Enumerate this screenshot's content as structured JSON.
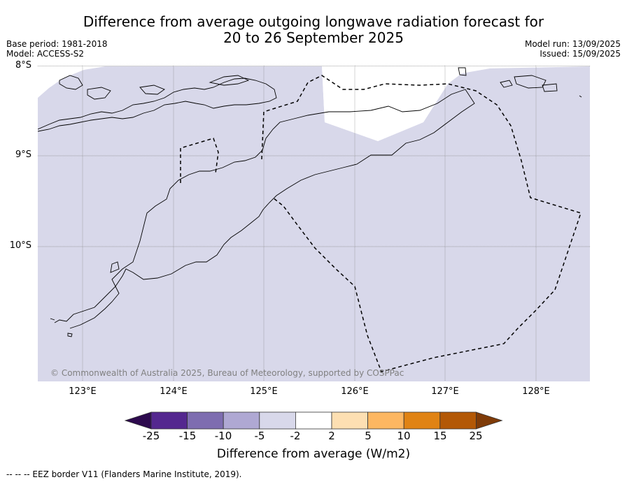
{
  "title_line1": "Difference from average outgoing longwave radiation forecast for",
  "title_line2": "20 to 26 September 2025",
  "base_period": "Base period: 1981-2018",
  "model": "Model: ACCESS-S2",
  "model_run": "Model run: 13/09/2025",
  "issued": "Issued: 15/09/2025",
  "lat_labels": [
    "8°S",
    "9°S",
    "10°S"
  ],
  "lon_labels": [
    "123°E",
    "124°E",
    "125°E",
    "126°E",
    "127°E",
    "128°E"
  ],
  "copyright": "© Commonwealth of Australia 2025, Bureau of Meteorology, supported by COSPPac",
  "colorbar": {
    "ticks": [
      "-25",
      "-15",
      "-10",
      "-5",
      "-2",
      "2",
      "5",
      "10",
      "15",
      "25"
    ],
    "colors": [
      "#2d0a4e",
      "#54278f",
      "#7e6db0",
      "#afa8d3",
      "#d8d8ea",
      "#ffffff",
      "#fddfb2",
      "#fdb762",
      "#e08314",
      "#b35806",
      "#7f3b08"
    ],
    "label": "Difference from average (W/m2)"
  },
  "footer": "--  --  -- EEZ border V11 (Flanders Marine Institute, 2019).",
  "map_fill_color": "#d8d8ea"
}
